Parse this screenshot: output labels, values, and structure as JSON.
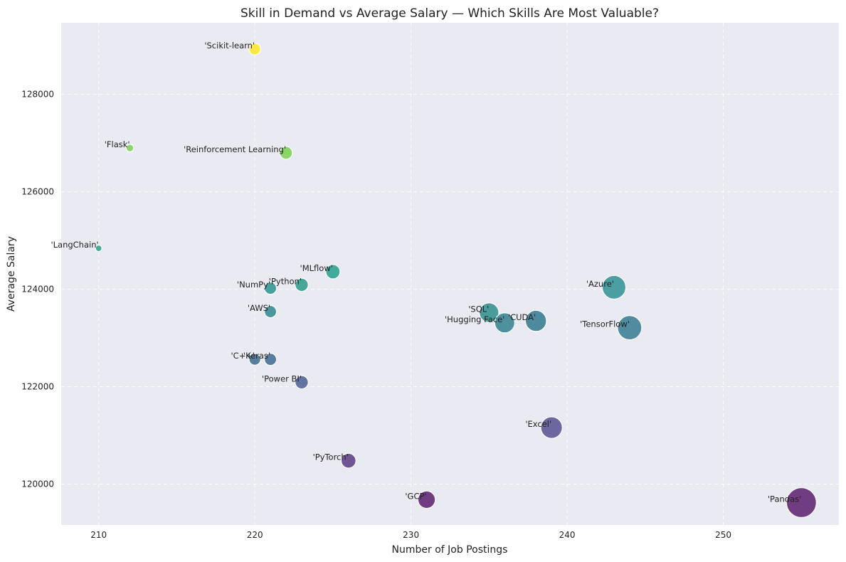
{
  "chart_data": {
    "type": "scatter",
    "title": "Skill in Demand vs Average Salary — Which Skills Are Most Valuable?",
    "xlabel": "Number of Job Postings",
    "ylabel": "Average Salary",
    "xlim": [
      207.6,
      257.4
    ],
    "ylim": [
      119160,
      129470
    ],
    "x_ticks": [
      210,
      220,
      230,
      240,
      250
    ],
    "y_ticks": [
      120000,
      122000,
      124000,
      126000,
      128000
    ],
    "grid": true,
    "colormap": "viridis",
    "points": [
      {
        "label": "'Scikit-learn'",
        "x": 220,
        "y": 128930,
        "color": "#fde725"
      },
      {
        "label": "'Flask'",
        "x": 212,
        "y": 126900,
        "color": "#7ad151"
      },
      {
        "label": "'Reinforcement Learning'",
        "x": 222,
        "y": 126800,
        "color": "#7ad151"
      },
      {
        "label": "'LangChain'",
        "x": 210,
        "y": 124840,
        "color": "#26a285"
      },
      {
        "label": "'MLflow'",
        "x": 225,
        "y": 124360,
        "color": "#25a18c"
      },
      {
        "label": "'Python'",
        "x": 223,
        "y": 124090,
        "color": "#2a9a8b"
      },
      {
        "label": "'NumPy'",
        "x": 221,
        "y": 124020,
        "color": "#2b9490"
      },
      {
        "label": "'AWS'",
        "x": 221,
        "y": 123540,
        "color": "#2e8a8e"
      },
      {
        "label": "'SQL'",
        "x": 235,
        "y": 123520,
        "color": "#2e8e8c"
      },
      {
        "label": "'Azure'",
        "x": 243,
        "y": 124040,
        "color": "#2f9295"
      },
      {
        "label": "'Hugging Face'",
        "x": 236,
        "y": 123310,
        "color": "#32808e"
      },
      {
        "label": "'CUDA'",
        "x": 238,
        "y": 123350,
        "color": "#33798e"
      },
      {
        "label": "'TensorFlow'",
        "x": 244,
        "y": 123210,
        "color": "#357a90"
      },
      {
        "label": "'C++'",
        "x": 220,
        "y": 122560,
        "color": "#3f6c8e"
      },
      {
        "label": "'Keras'",
        "x": 221,
        "y": 122560,
        "color": "#3e6a8f"
      },
      {
        "label": "'Power BI'",
        "x": 223,
        "y": 122090,
        "color": "#4a5d93"
      },
      {
        "label": "'Excel'",
        "x": 239,
        "y": 121160,
        "color": "#56508f"
      },
      {
        "label": "'PyTorch'",
        "x": 226,
        "y": 120480,
        "color": "#5b3b85"
      },
      {
        "label": "'GCP'",
        "x": 231,
        "y": 119680,
        "color": "#5a1e70"
      },
      {
        "label": "'Pandas'",
        "x": 255,
        "y": 119620,
        "color": "#5b1e6e"
      }
    ]
  }
}
